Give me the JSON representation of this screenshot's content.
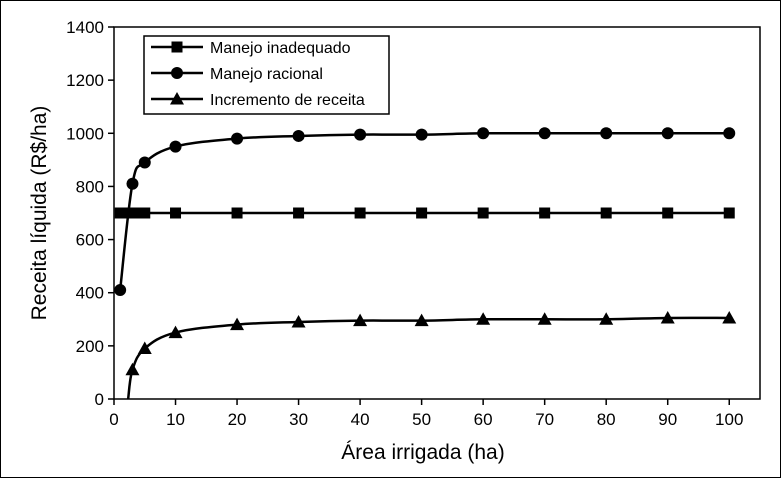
{
  "chart_data": {
    "type": "line",
    "xlabel": "Área irrigada (ha)",
    "ylabel": "Receita líquida (R$/ha)",
    "xlim": [
      0,
      105
    ],
    "ylim": [
      0,
      1400
    ],
    "x_ticks": [
      0,
      10,
      20,
      30,
      40,
      50,
      60,
      70,
      80,
      90,
      100
    ],
    "y_ticks": [
      0,
      200,
      400,
      600,
      800,
      1000,
      1200,
      1400
    ],
    "grid": false,
    "legend_position": "top-left",
    "series": [
      {
        "name": "Manejo inadequado",
        "marker": "square",
        "x": [
          1,
          2,
          3,
          4,
          5,
          10,
          20,
          30,
          40,
          50,
          60,
          70,
          80,
          90,
          100
        ],
        "y": [
          700,
          700,
          700,
          700,
          700,
          700,
          700,
          700,
          700,
          700,
          700,
          700,
          700,
          700,
          700
        ]
      },
      {
        "name": "Manejo racional",
        "marker": "circle",
        "x": [
          1,
          3,
          5,
          10,
          20,
          30,
          40,
          50,
          60,
          70,
          80,
          90,
          100
        ],
        "y": [
          410,
          810,
          890,
          950,
          980,
          990,
          995,
          995,
          1000,
          1000,
          1000,
          1000,
          1000
        ]
      },
      {
        "name": "Incremento de receita",
        "marker": "triangle",
        "x": [
          3,
          5,
          10,
          20,
          30,
          40,
          50,
          60,
          70,
          80,
          90,
          100
        ],
        "y": [
          110,
          190,
          250,
          280,
          290,
          295,
          295,
          300,
          300,
          300,
          305,
          305
        ]
      }
    ]
  }
}
